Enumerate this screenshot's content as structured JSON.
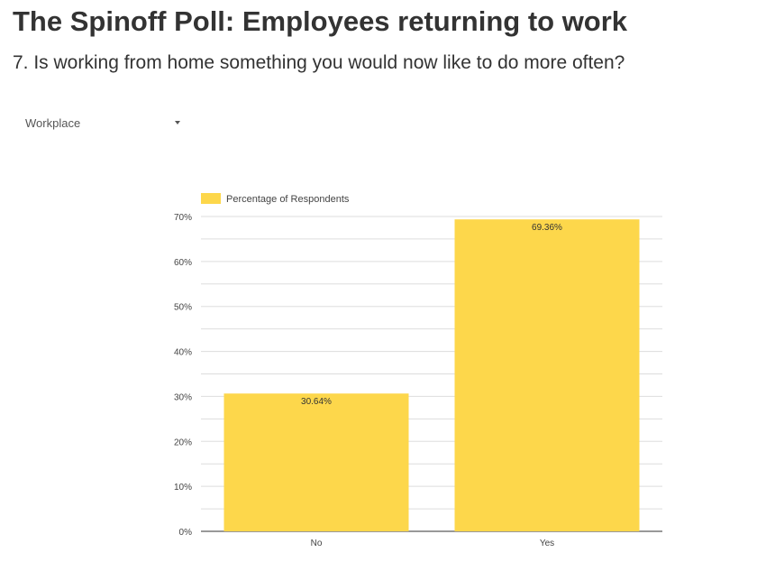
{
  "title": "The Spinoff Poll: Employees returning to work",
  "subtitle": "7. Is working from home something you would now like to do more often?",
  "filter": {
    "label": "Workplace"
  },
  "colors": {
    "bar": "#fdd74b",
    "grid": "#dddddd",
    "axis": "#333333"
  },
  "chart_data": {
    "type": "bar",
    "title": "",
    "categories": [
      "No",
      "Yes"
    ],
    "series": [
      {
        "name": "Percentage of Respondents",
        "values": [
          30.64,
          69.36
        ]
      }
    ],
    "data_labels": [
      "30.64%",
      "69.36%"
    ],
    "ylim": [
      0,
      70
    ],
    "yticks": [
      "0%",
      "10%",
      "20%",
      "30%",
      "40%",
      "50%",
      "60%",
      "70%"
    ],
    "grid": true,
    "legend": "top-left",
    "xlabel": "",
    "ylabel": ""
  }
}
